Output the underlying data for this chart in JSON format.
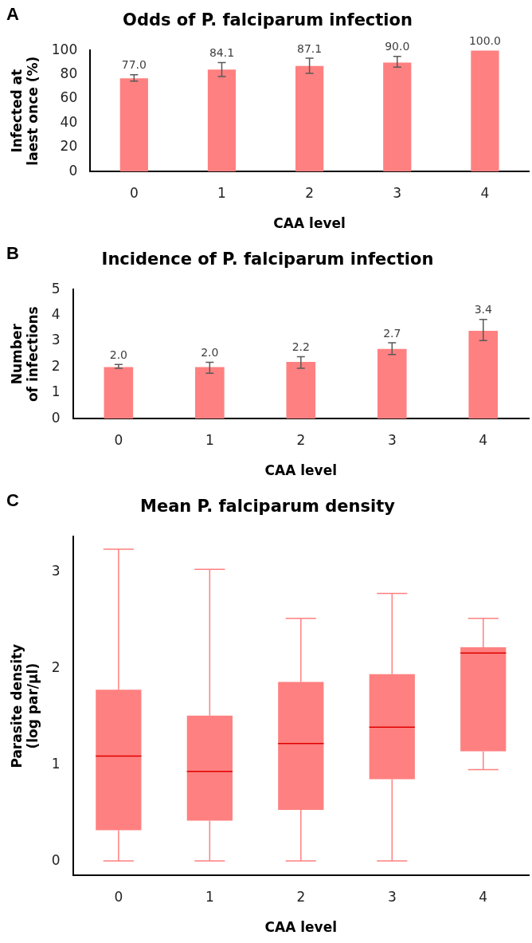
{
  "chart_data": [
    {
      "type": "bar",
      "title": "Odds of P. falciparum infection",
      "xlabel": "CAA level",
      "ylabel": "Infected at\nlaest once (%)",
      "annotations": [
        "A"
      ],
      "categories": [
        "0",
        "1",
        "2",
        "3",
        "4"
      ],
      "values": [
        77.0,
        84.1,
        87.1,
        90.0,
        100.0
      ],
      "color": "#ff8080",
      "errors": [
        [
          74.6,
          79.9
        ],
        [
          78.5,
          90.0
        ],
        [
          81.1,
          93.5
        ],
        [
          86.1,
          95.0
        ],
        null
      ],
      "ylim": [
        0,
        100
      ],
      "yticks": [
        0,
        20,
        40,
        60,
        80,
        100
      ],
      "value_labels": [
        "77.0",
        "84.1",
        "87.1",
        "90.0",
        "100.0"
      ]
    },
    {
      "type": "bar",
      "title": "Incidence of P. falciparum infection",
      "xlabel": "CAA level",
      "ylabel": "Number\nof infections",
      "annotations": [
        "B"
      ],
      "categories": [
        "0",
        "1",
        "2",
        "3",
        "4"
      ],
      "values": [
        2.0,
        2.0,
        2.2,
        2.7,
        3.4
      ],
      "color": "#ff8080",
      "errors": [
        [
          1.95,
          2.1
        ],
        [
          1.76,
          2.18
        ],
        [
          1.95,
          2.4
        ],
        [
          2.48,
          2.94
        ],
        [
          3.02,
          3.84
        ]
      ],
      "ylim": [
        0,
        5
      ],
      "yticks": [
        0,
        1,
        2,
        3,
        4,
        5
      ],
      "value_labels": [
        "2.0",
        "2.0",
        "2.2",
        "2.7",
        "3.4"
      ]
    },
    {
      "type": "box",
      "title": "Mean P. falciparum density",
      "xlabel": "CAA level",
      "ylabel": "Parasite density\n(log par/µl)",
      "annotations": [
        "C"
      ],
      "categories": [
        "0",
        "1",
        "2",
        "3",
        "4"
      ],
      "color": "#ff8080",
      "boxes": [
        {
          "low": 0,
          "q1": 0.32,
          "median": 1.09,
          "q3": 1.78,
          "high": 3.24
        },
        {
          "low": 0,
          "q1": 0.42,
          "median": 0.93,
          "q3": 1.51,
          "high": 3.03
        },
        {
          "low": 0,
          "q1": 0.53,
          "median": 1.22,
          "q3": 1.86,
          "high": 2.52
        },
        {
          "low": 0,
          "q1": 0.85,
          "median": 1.39,
          "q3": 1.94,
          "high": 2.78
        },
        {
          "low": 0.95,
          "q1": 1.14,
          "median": 2.16,
          "q3": 2.22,
          "high": 2.52
        }
      ],
      "ylim": [
        -0.15,
        3.37
      ],
      "yticks": [
        0,
        1,
        2,
        3
      ]
    }
  ]
}
